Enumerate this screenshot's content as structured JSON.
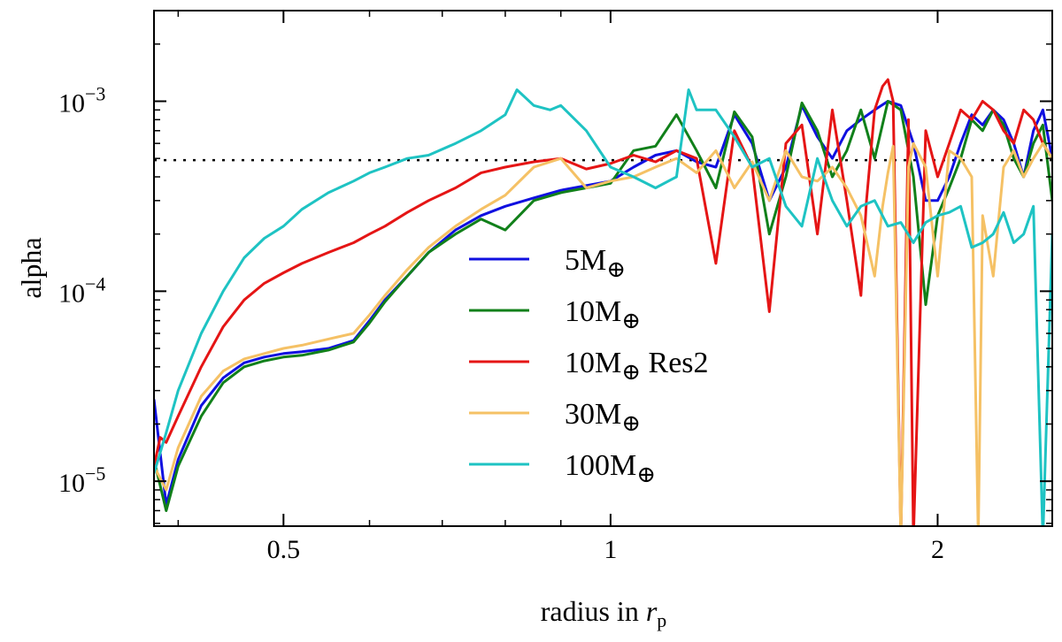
{
  "chart_data": {
    "type": "line",
    "title": "",
    "xlabel": "radius in",
    "xlabel_symbol": "r",
    "xlabel_subscript": "p",
    "ylabel": "alpha",
    "xscale": "log",
    "yscale": "log",
    "xlim": [
      0.38,
      2.55
    ],
    "ylim": [
      5.8e-06,
      0.003
    ],
    "x_ticks": [
      {
        "value": 0.5,
        "label": "0.5"
      },
      {
        "value": 1,
        "label": "1"
      },
      {
        "value": 2,
        "label": "2"
      }
    ],
    "y_ticks": [
      {
        "value": 1e-05,
        "base": "10",
        "exp": "−5"
      },
      {
        "value": 0.0001,
        "base": "10",
        "exp": "−4"
      },
      {
        "value": 0.001,
        "base": "10",
        "exp": "−3"
      }
    ],
    "reference_line": {
      "y": 0.00049,
      "style": "dotted",
      "color": "#000000"
    },
    "legend_position": "center",
    "series": [
      {
        "name": "5M",
        "label_main": "5M",
        "label_sub": "⊕",
        "label_suffix": "",
        "color": "#1010e0",
        "x": [
          0.38,
          0.39,
          0.4,
          0.42,
          0.44,
          0.46,
          0.48,
          0.5,
          0.52,
          0.55,
          0.58,
          0.6,
          0.62,
          0.65,
          0.68,
          0.72,
          0.76,
          0.8,
          0.85,
          0.9,
          0.95,
          1.0,
          1.05,
          1.1,
          1.15,
          1.2,
          1.25,
          1.3,
          1.35,
          1.4,
          1.45,
          1.5,
          1.55,
          1.6,
          1.65,
          1.7,
          1.75,
          1.8,
          1.85,
          1.9,
          1.95,
          2.0,
          2.05,
          2.1,
          2.15,
          2.2,
          2.25,
          2.3,
          2.35,
          2.4,
          2.45,
          2.5,
          2.55
        ],
        "y": [
          2.7e-05,
          7.5e-06,
          1.3e-05,
          2.5e-05,
          3.5e-05,
          4.2e-05,
          4.5e-05,
          4.7e-05,
          4.8e-05,
          5e-05,
          5.5e-05,
          7e-05,
          9e-05,
          0.00012,
          0.00016,
          0.00021,
          0.00025,
          0.00028,
          0.00031,
          0.00034,
          0.00036,
          0.00038,
          0.00045,
          0.00052,
          0.00055,
          0.00048,
          0.00045,
          0.00085,
          0.0006,
          0.0003,
          0.00045,
          0.00095,
          0.00065,
          0.0005,
          0.0007,
          0.0008,
          0.0009,
          0.001,
          0.00095,
          0.0006,
          0.0003,
          0.0003,
          0.0004,
          0.0006,
          0.00085,
          0.00075,
          0.0009,
          0.0008,
          0.0006,
          0.0004,
          0.0007,
          0.0009,
          0.0005
        ]
      },
      {
        "name": "10M",
        "label_main": "10M",
        "label_sub": "⊕",
        "label_suffix": "",
        "color": "#11801a",
        "x": [
          0.38,
          0.39,
          0.4,
          0.42,
          0.44,
          0.46,
          0.48,
          0.5,
          0.52,
          0.55,
          0.58,
          0.6,
          0.62,
          0.65,
          0.68,
          0.72,
          0.76,
          0.8,
          0.85,
          0.9,
          0.95,
          1.0,
          1.05,
          1.1,
          1.15,
          1.2,
          1.25,
          1.3,
          1.35,
          1.4,
          1.45,
          1.5,
          1.55,
          1.6,
          1.65,
          1.7,
          1.75,
          1.8,
          1.85,
          1.9,
          1.95,
          2.0,
          2.05,
          2.1,
          2.15,
          2.2,
          2.25,
          2.3,
          2.35,
          2.4,
          2.45,
          2.5,
          2.55
        ],
        "y": [
          1.3e-05,
          7e-06,
          1.2e-05,
          2.2e-05,
          3.3e-05,
          4e-05,
          4.3e-05,
          4.5e-05,
          4.6e-05,
          4.9e-05,
          5.4e-05,
          6.8e-05,
          8.8e-05,
          0.00012,
          0.00016,
          0.0002,
          0.00024,
          0.00021,
          0.0003,
          0.00033,
          0.00035,
          0.00037,
          0.00055,
          0.00058,
          0.00085,
          0.00055,
          0.00035,
          0.00088,
          0.00065,
          0.0002,
          0.0004,
          0.00098,
          0.0007,
          0.0004,
          0.00055,
          0.0009,
          0.0005,
          0.001,
          0.0009,
          0.0004,
          8.5e-05,
          0.00025,
          0.00035,
          0.0005,
          0.0008,
          0.0007,
          0.0009,
          0.00075,
          0.0005,
          0.0004,
          0.0006,
          0.00075,
          0.0003
        ]
      },
      {
        "name": "10M Res2",
        "label_main": "10M",
        "label_sub": "⊕",
        "label_suffix": " Res2",
        "color": "#e51515",
        "x": [
          0.38,
          0.385,
          0.39,
          0.4,
          0.42,
          0.44,
          0.46,
          0.48,
          0.5,
          0.52,
          0.55,
          0.58,
          0.6,
          0.62,
          0.65,
          0.68,
          0.72,
          0.76,
          0.8,
          0.85,
          0.9,
          0.95,
          1.0,
          1.05,
          1.1,
          1.15,
          1.2,
          1.25,
          1.3,
          1.35,
          1.4,
          1.45,
          1.5,
          1.55,
          1.6,
          1.65,
          1.7,
          1.72,
          1.75,
          1.78,
          1.8,
          1.82,
          1.85,
          1.88,
          1.9,
          1.95,
          2.0,
          2.05,
          2.1,
          2.15,
          2.2,
          2.25,
          2.3,
          2.35,
          2.4,
          2.45,
          2.5,
          2.55
        ],
        "y": [
          1.2e-05,
          1.7e-05,
          1.6e-05,
          2.2e-05,
          4e-05,
          6.5e-05,
          9e-05,
          0.00011,
          0.000125,
          0.00014,
          0.00016,
          0.00018,
          0.0002,
          0.00022,
          0.00026,
          0.0003,
          0.00035,
          0.00042,
          0.00045,
          0.00048,
          0.0005,
          0.00044,
          0.00047,
          0.00052,
          0.00048,
          0.00055,
          0.0005,
          0.00014,
          0.0007,
          0.00045,
          7.8e-05,
          0.0006,
          0.00075,
          0.0002,
          0.0009,
          0.0003,
          9.5e-05,
          0.0003,
          0.0009,
          0.0012,
          0.0013,
          0.001,
          5e-06,
          0.0008,
          5e-06,
          0.0007,
          0.0004,
          0.0006,
          0.0009,
          0.0008,
          0.001,
          0.0009,
          0.0007,
          0.0006,
          0.0009,
          0.0008,
          0.0006,
          0.0005
        ]
      },
      {
        "name": "30M",
        "label_main": "30M",
        "label_sub": "⊕",
        "label_suffix": "",
        "color": "#f5c165",
        "x": [
          0.38,
          0.39,
          0.4,
          0.42,
          0.44,
          0.46,
          0.48,
          0.5,
          0.52,
          0.55,
          0.58,
          0.6,
          0.62,
          0.65,
          0.68,
          0.72,
          0.76,
          0.8,
          0.85,
          0.9,
          0.95,
          1.0,
          1.05,
          1.1,
          1.15,
          1.2,
          1.25,
          1.3,
          1.35,
          1.4,
          1.45,
          1.5,
          1.55,
          1.6,
          1.65,
          1.7,
          1.75,
          1.78,
          1.8,
          1.82,
          1.85,
          1.88,
          1.9,
          1.95,
          2.0,
          2.05,
          2.1,
          2.15,
          2.18,
          2.2,
          2.25,
          2.3,
          2.35,
          2.4,
          2.45,
          2.5,
          2.55
        ],
        "y": [
          1.2e-05,
          9e-06,
          1.5e-05,
          2.8e-05,
          3.8e-05,
          4.4e-05,
          4.7e-05,
          5e-05,
          5.2e-05,
          5.6e-05,
          6e-05,
          7.5e-05,
          9.5e-05,
          0.00013,
          0.00017,
          0.00022,
          0.00027,
          0.00032,
          0.00045,
          0.0005,
          0.00035,
          0.00038,
          0.0004,
          0.00045,
          0.0005,
          0.00042,
          0.00055,
          0.00035,
          0.00048,
          0.0003,
          0.00055,
          0.0004,
          0.00038,
          0.00045,
          0.00035,
          0.00025,
          0.00012,
          0.00028,
          0.00042,
          0.00058,
          5e-06,
          0.00045,
          0.0006,
          0.00045,
          0.00012,
          0.00055,
          0.0005,
          0.0004,
          5e-06,
          0.00025,
          0.00012,
          0.00045,
          0.00055,
          0.0004,
          0.0005,
          0.0006,
          0.0005
        ]
      },
      {
        "name": "100M",
        "label_main": "100M",
        "label_sub": "⊕",
        "label_suffix": "",
        "color": "#1ec3c3",
        "x": [
          0.38,
          0.39,
          0.4,
          0.42,
          0.44,
          0.46,
          0.48,
          0.5,
          0.52,
          0.55,
          0.58,
          0.6,
          0.62,
          0.65,
          0.68,
          0.72,
          0.76,
          0.8,
          0.82,
          0.85,
          0.88,
          0.9,
          0.95,
          1.0,
          1.05,
          1.1,
          1.15,
          1.18,
          1.2,
          1.25,
          1.3,
          1.35,
          1.4,
          1.45,
          1.5,
          1.55,
          1.6,
          1.65,
          1.7,
          1.75,
          1.8,
          1.85,
          1.9,
          1.95,
          2.0,
          2.05,
          2.1,
          2.15,
          2.2,
          2.25,
          2.3,
          2.35,
          2.4,
          2.45,
          2.5,
          2.55
        ],
        "y": [
          1.1e-05,
          1.8e-05,
          3e-05,
          6e-05,
          0.0001,
          0.00015,
          0.00019,
          0.00022,
          0.00027,
          0.00033,
          0.00038,
          0.00042,
          0.00045,
          0.0005,
          0.00052,
          0.0006,
          0.0007,
          0.00085,
          0.00115,
          0.00095,
          0.0009,
          0.00095,
          0.0007,
          0.00045,
          0.0004,
          0.00035,
          0.0004,
          0.00115,
          0.0009,
          0.0009,
          0.00065,
          0.00045,
          0.0005,
          0.00028,
          0.00022,
          0.0005,
          0.0003,
          0.00022,
          0.00028,
          0.0003,
          0.00022,
          0.00023,
          0.00018,
          0.00023,
          0.00025,
          0.00026,
          0.00028,
          0.00017,
          0.00018,
          0.0002,
          0.00026,
          0.00018,
          0.0002,
          0.00028,
          5e-06,
          0.0002
        ]
      }
    ]
  }
}
